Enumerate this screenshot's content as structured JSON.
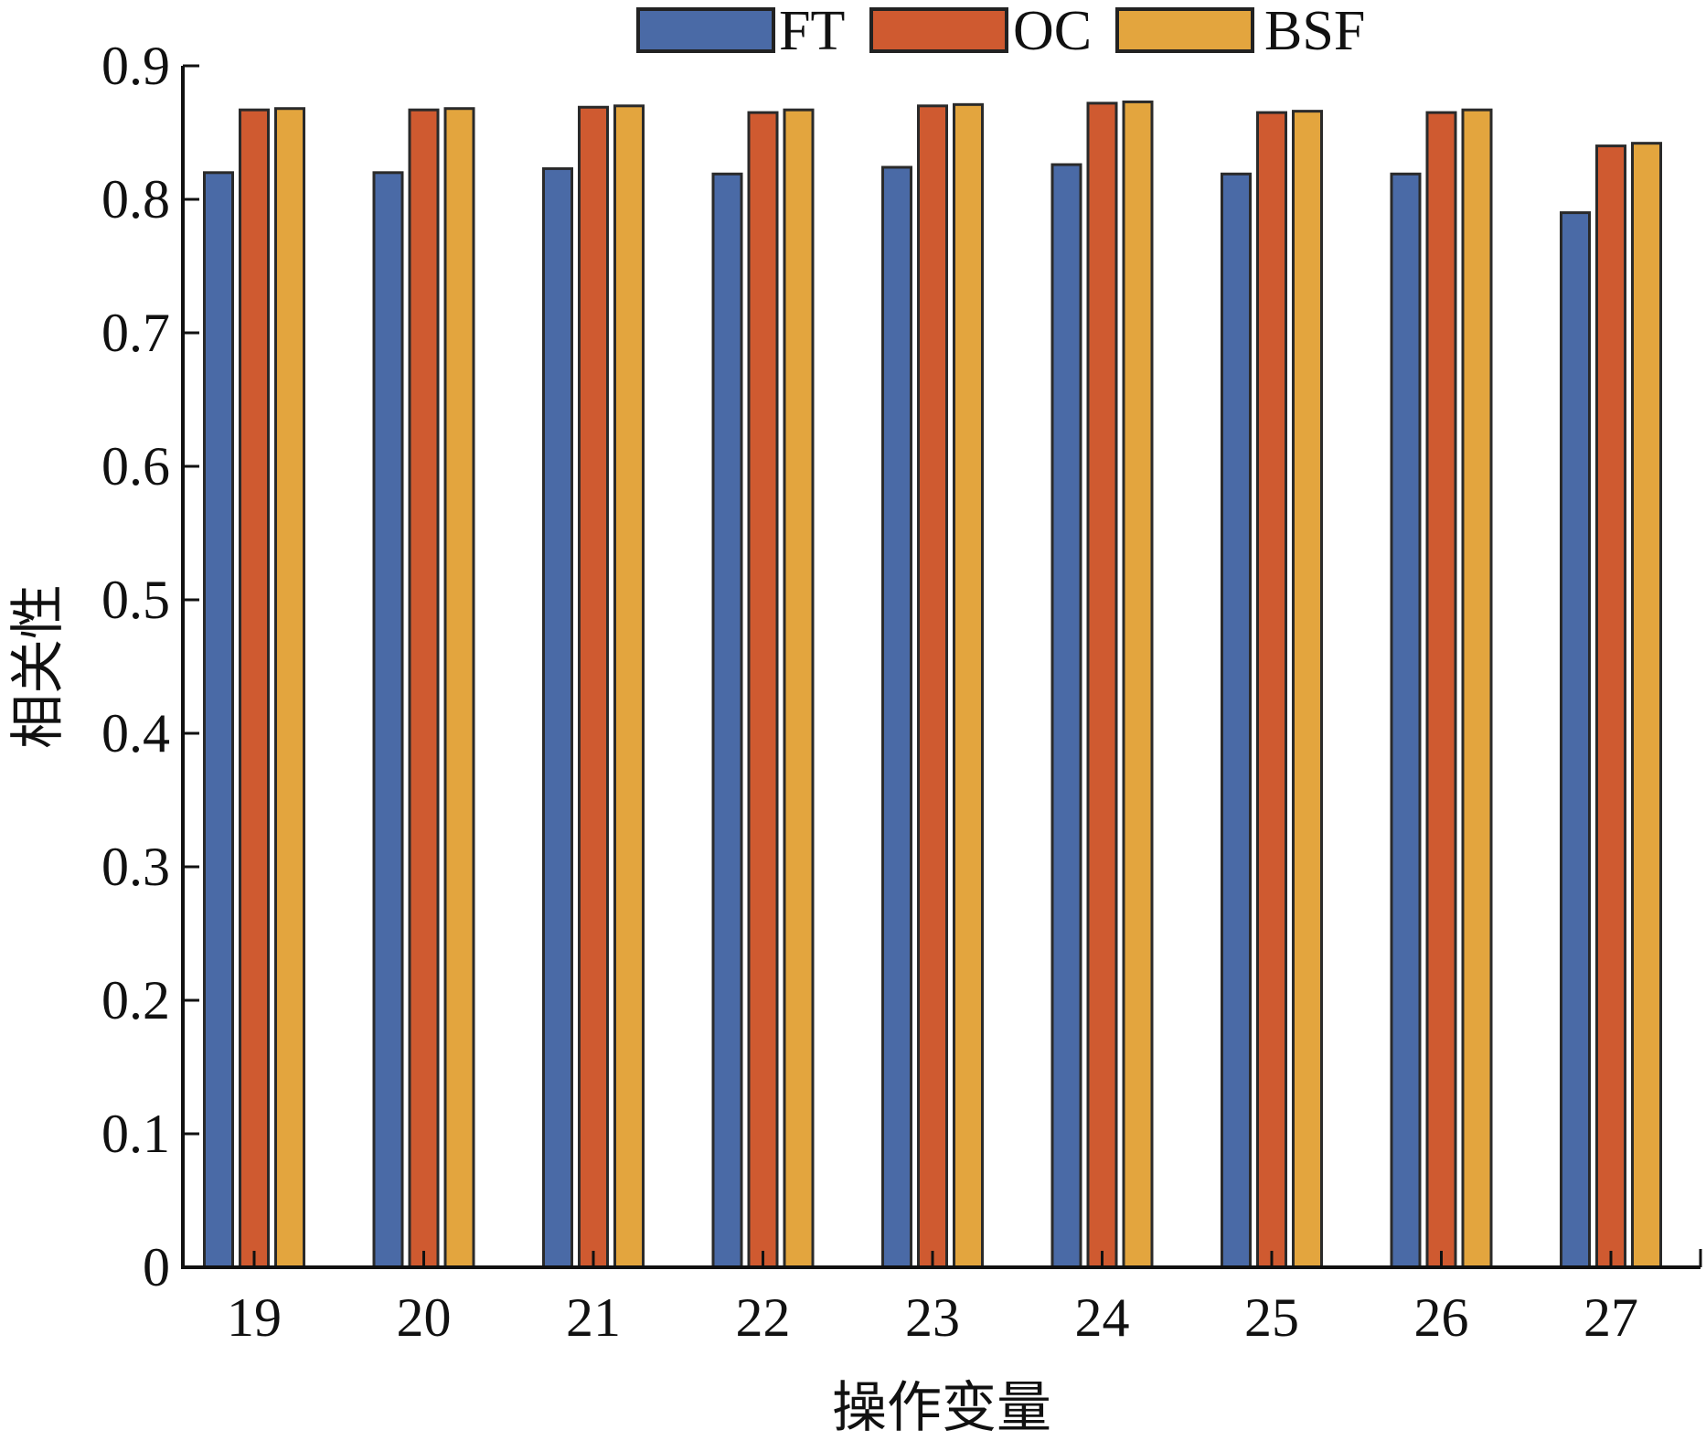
{
  "chart_data": {
    "type": "bar",
    "title": "",
    "xlabel": "操作变量",
    "ylabel": "相关性",
    "categories": [
      "19",
      "20",
      "21",
      "22",
      "23",
      "24",
      "25",
      "26",
      "27"
    ],
    "series": [
      {
        "name": "FT",
        "color": "#4a6aa6",
        "values": [
          0.82,
          0.82,
          0.823,
          0.819,
          0.824,
          0.826,
          0.819,
          0.819,
          0.79
        ]
      },
      {
        "name": "OC",
        "color": "#cf5a30",
        "values": [
          0.867,
          0.867,
          0.869,
          0.865,
          0.87,
          0.872,
          0.865,
          0.865,
          0.84
        ]
      },
      {
        "name": "BSF",
        "color": "#e3a53e",
        "values": [
          0.868,
          0.868,
          0.87,
          0.867,
          0.871,
          0.873,
          0.866,
          0.867,
          0.842
        ]
      }
    ],
    "ylim": [
      0,
      0.9
    ],
    "yticks": [
      "0",
      "0.1",
      "0.2",
      "0.3",
      "0.4",
      "0.5",
      "0.6",
      "0.7",
      "0.8",
      "0.9"
    ],
    "grid": false,
    "legend_position": "top-center"
  }
}
